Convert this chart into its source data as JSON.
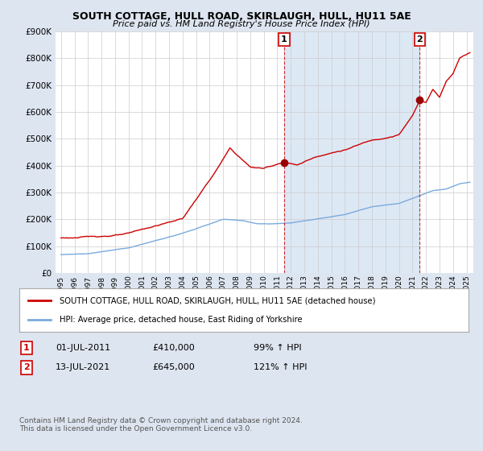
{
  "title": "SOUTH COTTAGE, HULL ROAD, SKIRLAUGH, HULL, HU11 5AE",
  "subtitle": "Price paid vs. HM Land Registry's House Price Index (HPI)",
  "legend_line1": "SOUTH COTTAGE, HULL ROAD, SKIRLAUGH, HULL, HU11 5AE (detached house)",
  "legend_line2": "HPI: Average price, detached house, East Riding of Yorkshire",
  "annotation1_label": "1",
  "annotation1_date": "01-JUL-2011",
  "annotation1_price": "£410,000",
  "annotation1_hpi": "99% ↑ HPI",
  "annotation2_label": "2",
  "annotation2_date": "13-JUL-2021",
  "annotation2_price": "£645,000",
  "annotation2_hpi": "121% ↑ HPI",
  "footnote": "Contains HM Land Registry data © Crown copyright and database right 2024.\nThis data is licensed under the Open Government Licence v3.0.",
  "ylim": [
    0,
    900000
  ],
  "yticks": [
    0,
    100000,
    200000,
    300000,
    400000,
    500000,
    600000,
    700000,
    800000,
    900000
  ],
  "xlim_start": 1995.0,
  "xlim_end": 2025.5,
  "sale1_x": 2011.5,
  "sale1_y": 410000,
  "sale2_x": 2021.54,
  "sale2_y": 645000,
  "background_color": "#dde5f0",
  "plot_bg_color": "#ffffff",
  "shade_color": "#dde8f5",
  "red_line_color": "#cc0000",
  "blue_line_color": "#7aaadd",
  "vline_color": "#cc0000",
  "grid_color": "#cccccc",
  "marker_color": "#990000"
}
